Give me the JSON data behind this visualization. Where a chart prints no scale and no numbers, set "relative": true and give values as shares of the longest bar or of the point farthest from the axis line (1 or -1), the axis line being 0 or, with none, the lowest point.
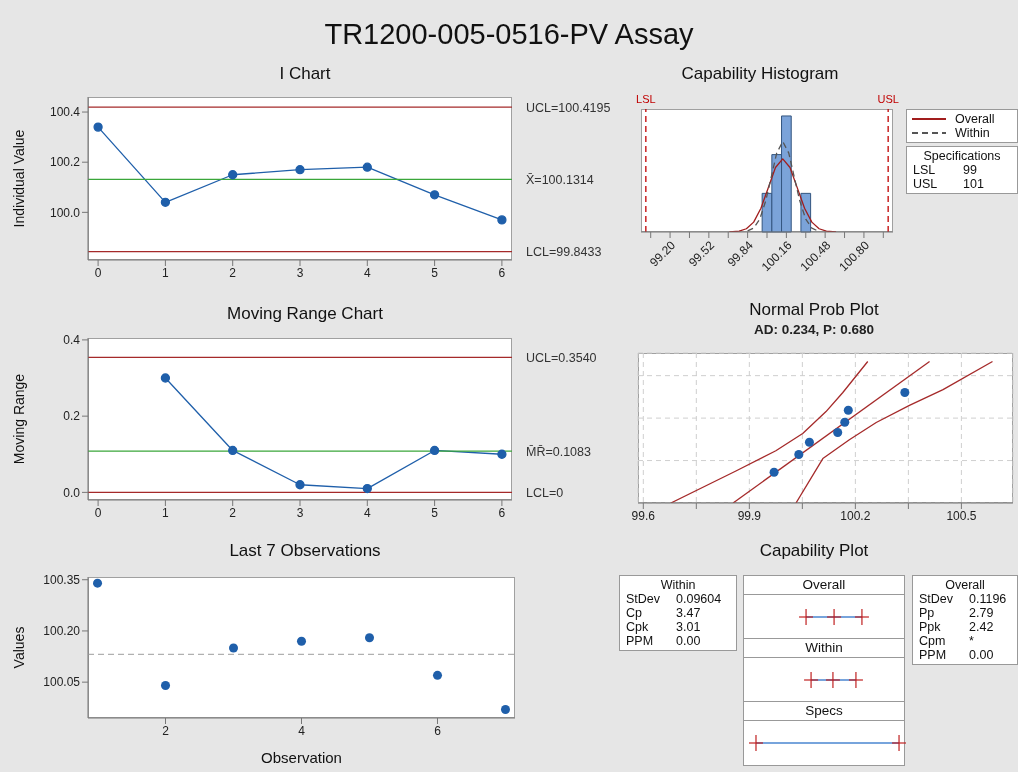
{
  "chart_data": [
    {
      "type": "line",
      "title": "I Chart",
      "ylabel": "Individual Value",
      "annotations": [
        "TR1200-005-0516-PV Assay"
      ],
      "x": [
        0,
        1,
        2,
        3,
        4,
        5,
        6
      ],
      "values": [
        100.34,
        100.04,
        100.15,
        100.17,
        100.18,
        100.07,
        99.97
      ],
      "color": "#1f5faa",
      "marker": "circle",
      "xlim": [
        -0.15,
        6.15
      ],
      "xticks": [
        0,
        1,
        2,
        3,
        4,
        5,
        6
      ],
      "ylim": [
        99.81,
        100.46
      ],
      "yticks": [
        {
          "value": 100,
          "label": "100.0"
        },
        {
          "value": 100.2,
          "label": "100.2"
        },
        {
          "value": 100.4,
          "label": "100.4"
        }
      ],
      "ref_lines": [
        {
          "axis": "y",
          "value": 100.4195,
          "label": "UCL=100.4195",
          "color": "#a52a2a"
        },
        {
          "axis": "y",
          "value": 100.1314,
          "label": "X̄=100.1314",
          "color": "#3aa63a"
        },
        {
          "axis": "y",
          "value": 99.8433,
          "label": "LCL=99.8433",
          "color": "#a52a2a"
        }
      ]
    },
    {
      "type": "line",
      "title": "Moving Range Chart",
      "ylabel": "Moving Range",
      "x": [
        1,
        2,
        3,
        4,
        5,
        6
      ],
      "values": [
        0.3,
        0.11,
        0.02,
        0.01,
        0.11,
        0.1
      ],
      "color": "#1f5faa",
      "marker": "circle",
      "xlim": [
        -0.15,
        6.15
      ],
      "xticks": [
        0,
        1,
        2,
        3,
        4,
        5,
        6
      ],
      "ylim": [
        -0.02,
        0.405
      ],
      "yticks": [
        {
          "value": 0,
          "label": "0.0"
        },
        {
          "value": 0.2,
          "label": "0.2"
        },
        {
          "value": 0.4,
          "label": "0.4"
        }
      ],
      "ref_lines": [
        {
          "axis": "y",
          "value": 0.354,
          "label": "UCL=0.3540",
          "color": "#a52a2a"
        },
        {
          "axis": "y",
          "value": 0.1083,
          "label": "M̄R̄=0.1083",
          "color": "#3aa63a"
        },
        {
          "axis": "y",
          "value": 0,
          "label": "LCL=0",
          "color": "#a52a2a"
        }
      ]
    },
    {
      "type": "scatter",
      "title": "Last 7 Observations",
      "xlabel": "Observation",
      "ylabel": "Values",
      "x": [
        1,
        2,
        3,
        4,
        5,
        6,
        7
      ],
      "values": [
        100.34,
        100.04,
        100.15,
        100.17,
        100.18,
        100.07,
        99.97
      ],
      "color": "#1f5faa",
      "marker": "circle",
      "xlim": [
        0.86,
        7.14
      ],
      "xticks": [
        2,
        4,
        6
      ],
      "ylim": [
        99.945,
        100.358
      ],
      "yticks": [
        100.05,
        {
          "value": 100.2,
          "label": "100.20"
        },
        100.35
      ],
      "ref_lines": [
        {
          "axis": "y",
          "value": 100.1314,
          "color": "#b0b0b0",
          "line_style": "dashed"
        }
      ]
    },
    {
      "type": "histogram",
      "title": "Capability Histogram",
      "relative": true,
      "bins": [
        99.96,
        100.04,
        100.12,
        100.2,
        100.28,
        100.36
      ],
      "values": [
        0.333,
        0.667,
        1,
        0,
        0.333
      ],
      "color": "#7ba3d9",
      "xlim": [
        98.96,
        101.04
      ],
      "xticks": [
        {
          "value": 99.04,
          "label": null
        },
        {
          "value": 99.2,
          "label": "99.20"
        },
        {
          "value": 99.36,
          "label": null
        },
        {
          "value": 99.52,
          "label": "99.52"
        },
        {
          "value": 99.68,
          "label": null
        },
        {
          "value": 99.84,
          "label": "99.84"
        },
        {
          "value": 100,
          "label": null
        },
        {
          "value": 100.16,
          "label": "100.16"
        },
        {
          "value": 100.32,
          "label": null
        },
        {
          "value": 100.48,
          "label": "100.48"
        },
        {
          "value": 100.64,
          "label": null
        },
        {
          "value": 100.8,
          "label": "100.80"
        },
        {
          "value": 100.96,
          "label": null
        }
      ],
      "series": [
        {
          "name": "Overall",
          "type": "line",
          "color": "#a11d1d",
          "x": [
            99.69,
            99.77,
            99.83,
            99.89,
            99.95,
            100.01,
            100.07,
            100.13,
            100.19,
            100.25,
            100.31,
            100.37,
            100.43,
            100.49,
            100.57
          ],
          "values": [
            0,
            0.007,
            0.028,
            0.085,
            0.205,
            0.38,
            0.556,
            0.63,
            0.556,
            0.38,
            0.205,
            0.085,
            0.028,
            0.007,
            0
          ]
        },
        {
          "name": "Within",
          "type": "line",
          "line_style": "dashed",
          "color": "#555555",
          "x": [
            99.84,
            99.89,
            99.94,
            99.99,
            100.03,
            100.08,
            100.13,
            100.18,
            100.23,
            100.27,
            100.32,
            100.37,
            100.42
          ],
          "values": [
            0.009,
            0.034,
            0.11,
            0.27,
            0.45,
            0.68,
            0.78,
            0.68,
            0.45,
            0.27,
            0.11,
            0.034,
            0.009
          ]
        }
      ],
      "ref_lines": [
        {
          "axis": "x",
          "value": 99,
          "label": "LSL",
          "color": "#c00000",
          "line_style": "dashed"
        },
        {
          "axis": "x",
          "value": 101,
          "label": "USL",
          "color": "#c00000",
          "line_style": "dashed"
        }
      ],
      "legend": "right",
      "annotations": [
        "Specifications",
        "LSL 99",
        "USL 101"
      ]
    },
    {
      "type": "scatter",
      "title": "Normal Prob Plot",
      "subtitle": "AD: 0.234, P: 0.680",
      "relative": true,
      "grid": true,
      "xlim": [
        99.585,
        100.646
      ],
      "xticks": [
        99.6,
        {
          "value": 99.75,
          "label": null
        },
        99.9,
        {
          "value": 100.05,
          "label": null
        },
        100.2,
        {
          "value": 100.35,
          "label": null
        },
        100.5
      ],
      "series": [
        {
          "type": "scatter",
          "marker": "circle",
          "color": "#1f5faa",
          "x": [
            99.97,
            100.04,
            100.07,
            100.15,
            100.17,
            100.18,
            100.34
          ],
          "values": [
            0.217,
            0.343,
            0.429,
            0.498,
            0.571,
            0.655,
            0.781
          ]
        },
        {
          "type": "line",
          "color": "#a52a2a",
          "x": [
            99.854,
            100.41
          ],
          "values": [
            0,
            1
          ]
        },
        {
          "type": "line",
          "color": "#a52a2a",
          "x": [
            99.678,
            99.862,
            99.975,
            100.051,
            100.117,
            100.164,
            100.235
          ],
          "values": [
            0,
            0.226,
            0.369,
            0.491,
            0.646,
            0.779,
            1
          ]
        },
        {
          "type": "line",
          "color": "#a52a2a",
          "x": [
            100.032,
            100.108,
            100.183,
            100.259,
            100.353,
            100.448,
            100.588
          ],
          "values": [
            0,
            0.314,
            0.447,
            0.569,
            0.69,
            0.801,
            1
          ]
        }
      ]
    },
    {
      "type": "other",
      "title": "Capability Plot",
      "annotations": [
        "Within",
        "StDev 0.09604",
        "Cp 3.47",
        "Cpk 3.01",
        "PPM 0.00",
        "Overall",
        "Within",
        "Specs",
        "Overall",
        "StDev 0.1196",
        "Pp 2.79",
        "Ppk 2.42",
        "Cpm *",
        "PPM 0.00"
      ]
    }
  ]
}
